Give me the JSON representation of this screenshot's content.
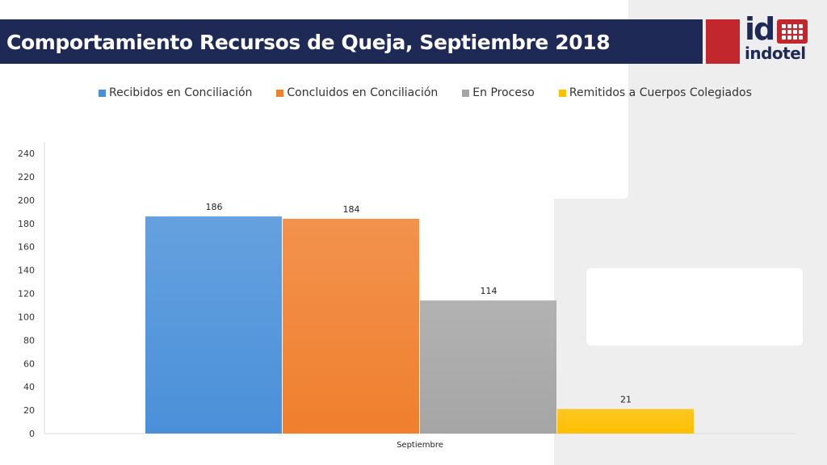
{
  "header": {
    "title": "Comportamiento Recursos de Queja, Septiembre 2018"
  },
  "logo": {
    "mark": "id",
    "brand": "indotel",
    "colors": {
      "navy": "#1e2a55",
      "red": "#c1272d"
    }
  },
  "chart_data": {
    "type": "bar",
    "categories": [
      "Septiembre"
    ],
    "series": [
      {
        "name": "Recibidos en Conciliación",
        "values": [
          186
        ],
        "color": "#4a90d9"
      },
      {
        "name": "Concluidos en Conciliación",
        "values": [
          184
        ],
        "color": "#f07f2e"
      },
      {
        "name": "En Proceso",
        "values": [
          114
        ],
        "color": "#a5a5a5"
      },
      {
        "name": "Remitidos a Cuerpos Colegiados",
        "values": [
          21
        ],
        "color": "#ffc000"
      }
    ],
    "ylim": [
      0,
      240
    ],
    "yticks": [
      0,
      20,
      40,
      60,
      80,
      100,
      120,
      140,
      160,
      180,
      200,
      220,
      240
    ],
    "data_labels": [
      "186",
      "184",
      "114",
      "21"
    ],
    "legend_position": "top",
    "grid": false
  }
}
